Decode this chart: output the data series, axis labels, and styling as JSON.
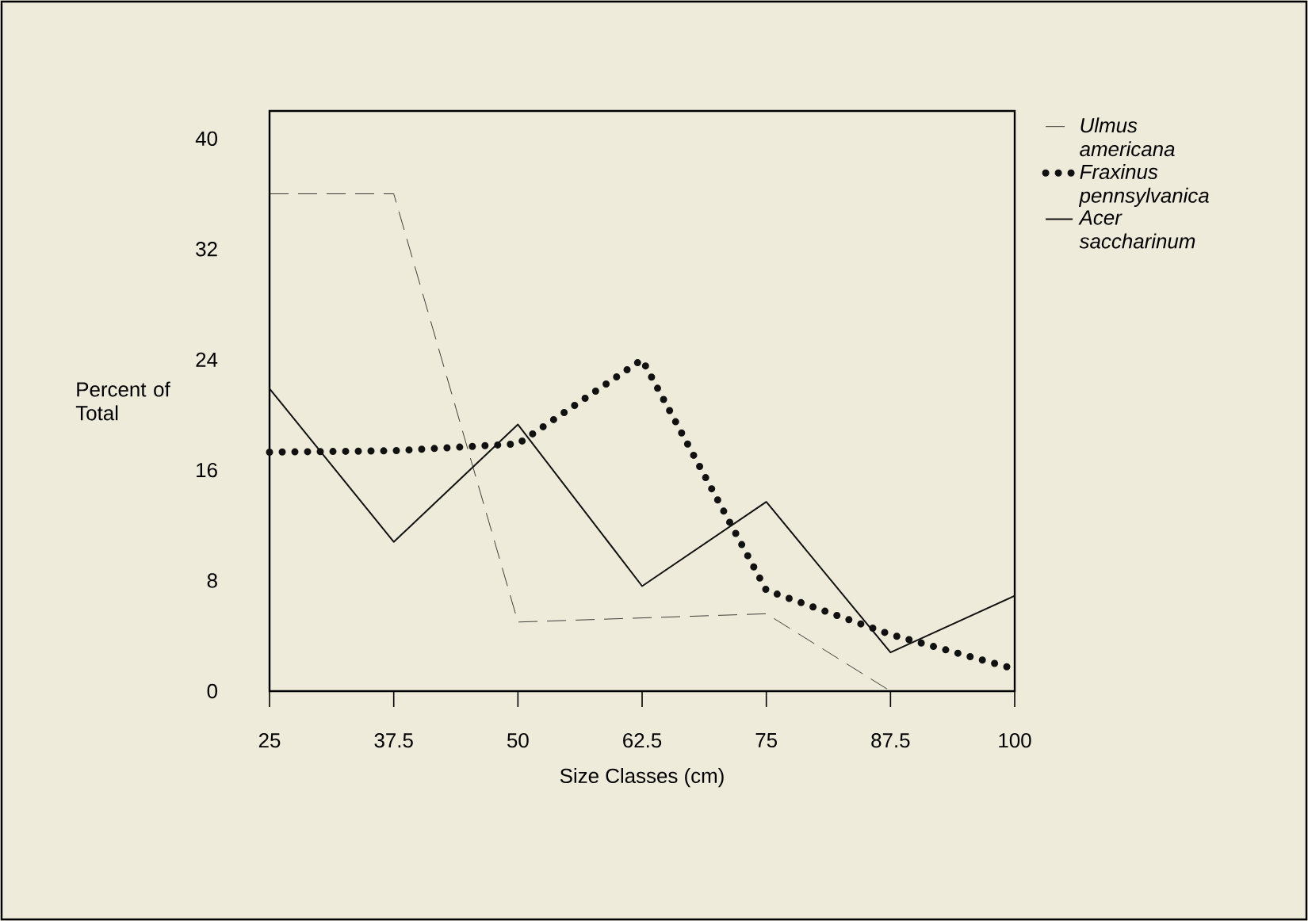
{
  "chart_data": {
    "type": "line",
    "xlabel": "Size Classes (cm)",
    "ylabel": "Percent of Total",
    "categories": [
      "25",
      "37.5",
      "50",
      "62.5",
      "75",
      "87.5",
      "100"
    ],
    "series": [
      {
        "name": "Ulmus americana",
        "color": "#111111",
        "line_style": "dashed",
        "values": [
          36,
          36,
          5,
          5.3,
          5.6,
          0,
          null
        ]
      },
      {
        "name": "Fraxinus pennsylvanica",
        "color": "#111111",
        "line_style": "dotted",
        "values": [
          17.3,
          17.4,
          17.9,
          24,
          7.3,
          4.1,
          1.6
        ]
      },
      {
        "name": "Acer saccharinum",
        "color": "#111111",
        "line_style": "solid",
        "values": [
          21.9,
          10.8,
          19.3,
          7.6,
          13.7,
          2.8,
          6.9
        ]
      }
    ],
    "ylim": [
      0,
      42
    ],
    "yticks": [
      0,
      8,
      16,
      24,
      32,
      40
    ],
    "grid": false,
    "legend": "right",
    "marker": "none"
  }
}
